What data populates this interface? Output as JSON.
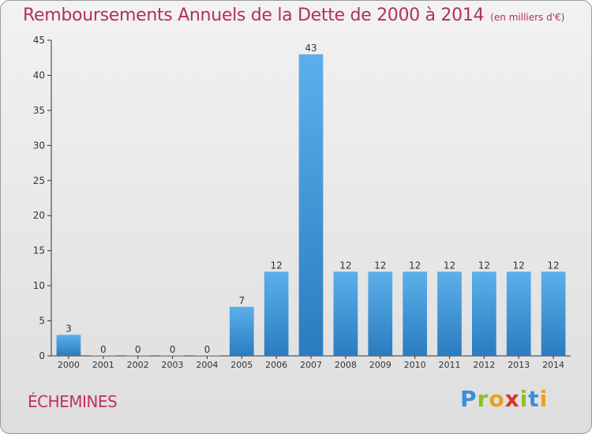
{
  "chart_data": {
    "type": "bar",
    "title": "Remboursements Annuels de la Dette de 2000 à 2014",
    "unit": "(en milliers d'€)",
    "categories": [
      "2000",
      "2001",
      "2002",
      "2003",
      "2004",
      "2005",
      "2006",
      "2007",
      "2008",
      "2009",
      "2010",
      "2011",
      "2012",
      "2013",
      "2014"
    ],
    "values": [
      3,
      0,
      0,
      0,
      0,
      7,
      12,
      43,
      12,
      12,
      12,
      12,
      12,
      12,
      12
    ],
    "ylim": [
      0,
      45
    ],
    "yticks": [
      0,
      5,
      10,
      15,
      20,
      25,
      30,
      35,
      40,
      45
    ],
    "grid": false,
    "bar_color": "#3f97dc"
  },
  "footer": {
    "town": "ÉCHEMINES",
    "logo_letters": [
      "P",
      "r",
      "o",
      "x",
      "i",
      "t",
      "i"
    ],
    "logo_colors": [
      "#3a8fd8",
      "#8fbf2c",
      "#e9a21c",
      "#d9342b",
      "#8fbf2c",
      "#3a8fd8",
      "#e9a21c"
    ]
  }
}
